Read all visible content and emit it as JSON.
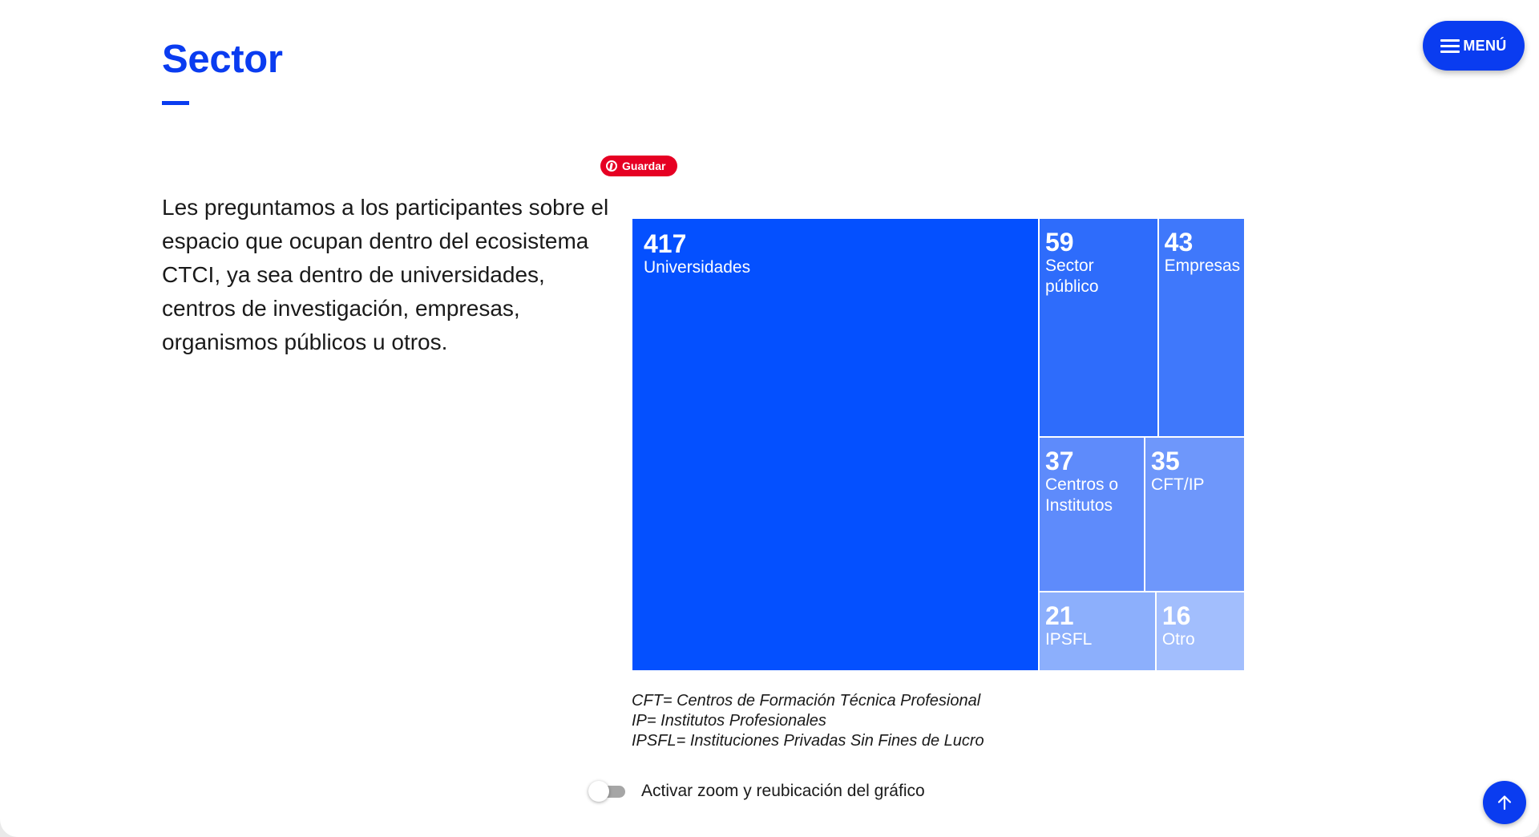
{
  "page": {
    "title": "Sector",
    "intro": "Les preguntamos a los participantes sobre el espacio que ocupan dentro del ecosistema CTCI, ya sea dentro de universidades, centros de investigación, empresas, organismos públicos u otros."
  },
  "menu": {
    "label": "MENÚ",
    "icon": "hamburger-icon"
  },
  "pinterest": {
    "label": "Guardar",
    "icon": "pinterest-icon"
  },
  "chart_data": {
    "type": "treemap",
    "series": [
      {
        "label": "Universidades",
        "value": 417,
        "color": "#0450ff"
      },
      {
        "label": "Sector público",
        "value": 59,
        "color": "#2e6cfb"
      },
      {
        "label": "Empresas",
        "value": 43,
        "color": "#3f78fb"
      },
      {
        "label": "Centros o Institutos",
        "value": 37,
        "color": "#5e8bfb"
      },
      {
        "label": "CFT/IP",
        "value": 35,
        "color": "#6e97fb"
      },
      {
        "label": "IPSFL",
        "value": 21,
        "color": "#8caffc"
      },
      {
        "label": "Otro",
        "value": 16,
        "color": "#a2befd"
      }
    ]
  },
  "notes": [
    "CFT= Centros de Formación Técnica Profesional",
    "IP= Institutos Profesionales",
    "IPSFL= Instituciones Privadas Sin Fines de Lucro"
  ],
  "zoom_toggle": {
    "label": "Activar zoom y reubicación del gráfico",
    "enabled": false
  },
  "scroll_top": {
    "icon": "arrow-up-icon"
  },
  "colors": {
    "accent": "#0a3cf0",
    "pinterest": "#e60023"
  }
}
